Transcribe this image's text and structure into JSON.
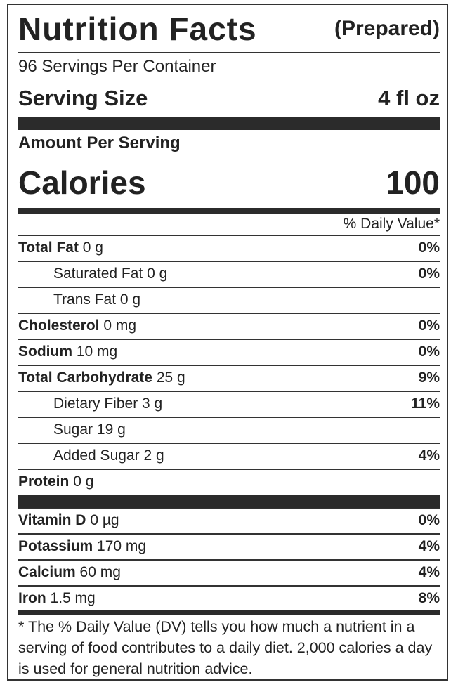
{
  "header": {
    "title": "Nutrition Facts",
    "qualifier": "(Prepared)"
  },
  "servings": "96 Servings Per Container",
  "serving_size": {
    "label": "Serving Size",
    "value": "4 fl oz"
  },
  "amount_per_serving": "Amount Per Serving",
  "calories": {
    "label": "Calories",
    "value": "100"
  },
  "daily_value_header": "% Daily Value*",
  "nutrients": [
    {
      "name": "Total Fat",
      "amount": "0 g",
      "dv": "0%"
    },
    {
      "name": "Saturated Fat",
      "amount": "0 g",
      "dv": "0%"
    },
    {
      "name": "Trans Fat",
      "amount": "0 g"
    },
    {
      "name": "Cholesterol",
      "amount": "0 mg",
      "dv": "0%"
    },
    {
      "name": "Sodium",
      "amount": "10 mg",
      "dv": "0%"
    },
    {
      "name": "Total Carbohydrate",
      "amount": "25 g",
      "dv": "9%"
    },
    {
      "name": "Dietary Fiber",
      "amount": "3 g",
      "dv": "11%"
    },
    {
      "name": "Sugar",
      "amount": "19 g"
    },
    {
      "name": "Added Sugar",
      "amount": "2 g",
      "dv": "4%"
    },
    {
      "name": "Protein",
      "amount": "0 g"
    }
  ],
  "vitamins": [
    {
      "name": "Vitamin D",
      "amount": "0 µg",
      "dv": "0%"
    },
    {
      "name": "Potassium",
      "amount": "170 mg",
      "dv": "4%"
    },
    {
      "name": "Calcium",
      "amount": "60 mg",
      "dv": "4%"
    },
    {
      "name": "Iron",
      "amount": "1.5 mg",
      "dv": "8%"
    }
  ],
  "footnote": "* The % Daily Value (DV) tells you how much a nutrient in a serving of food contributes to a daily diet. 2,000 calories a day is used for general nutrition advice."
}
